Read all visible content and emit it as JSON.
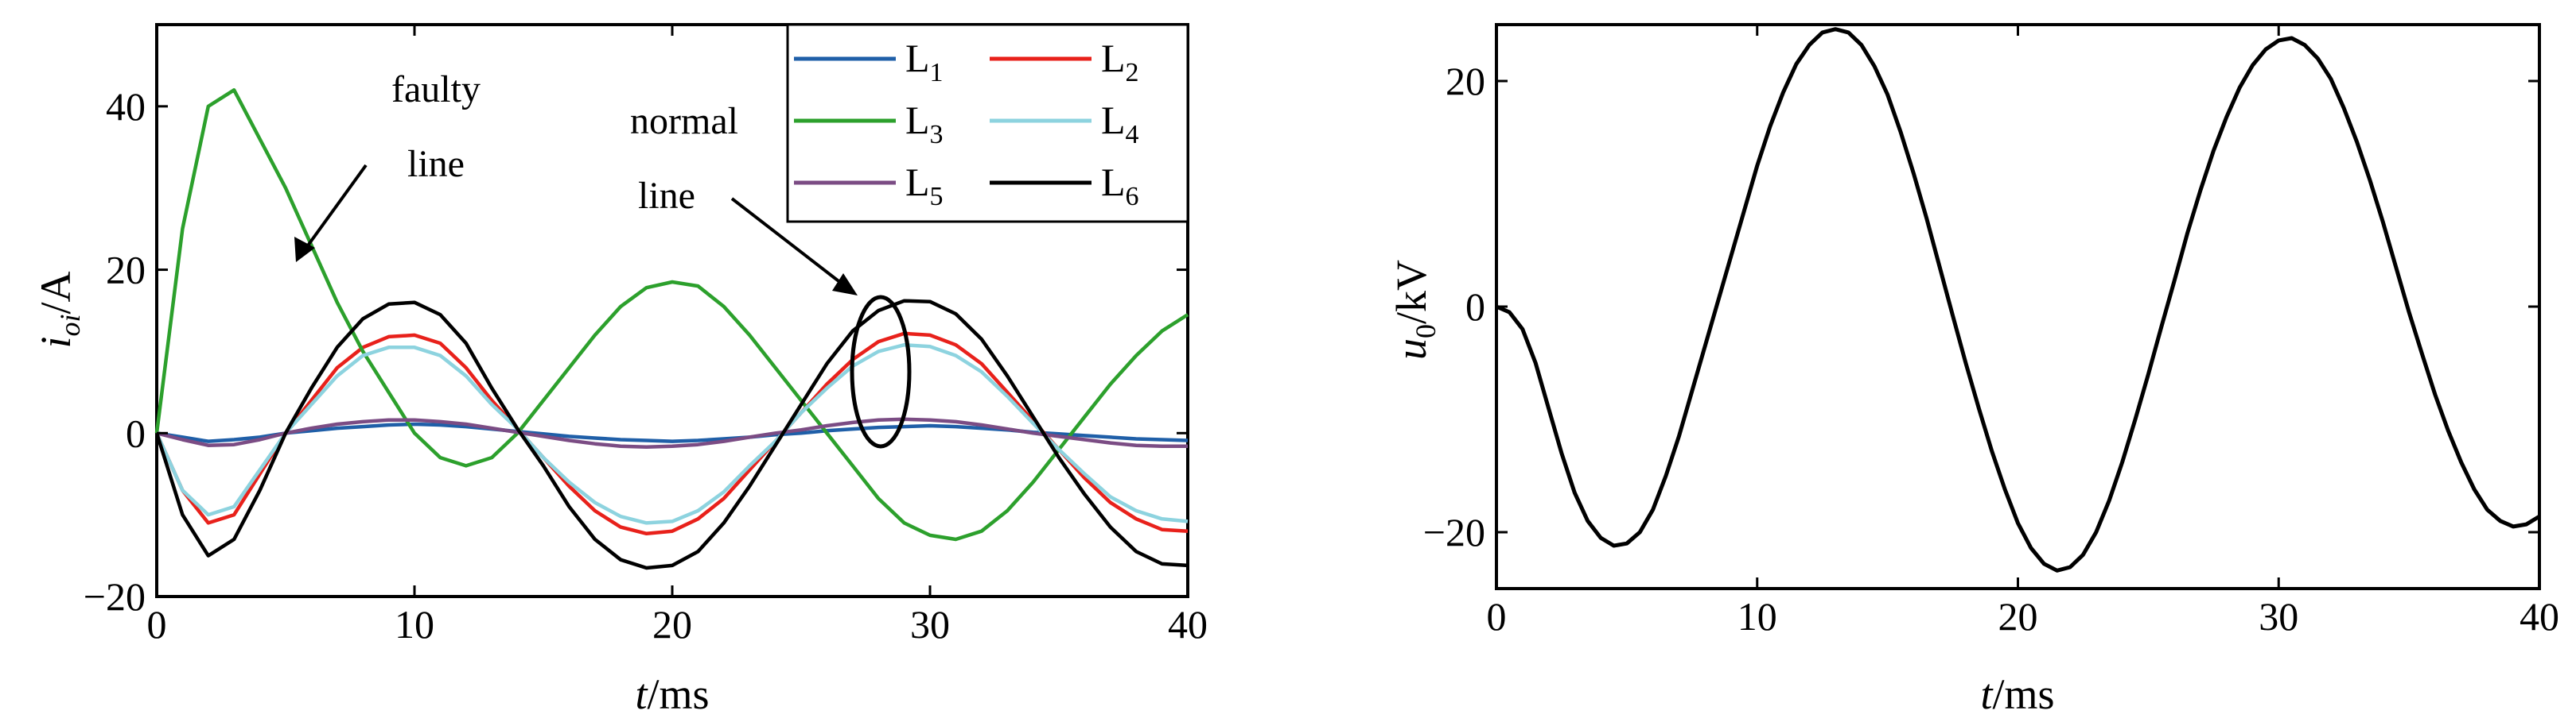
{
  "chart_data": [
    {
      "type": "line",
      "xlabel": {
        "main": "t",
        "unit": "/ms"
      },
      "ylabel": {
        "main": "i",
        "sub": "oi",
        "unit": "/A"
      },
      "xlim": [
        0,
        40
      ],
      "ylim": [
        -20,
        50
      ],
      "xticks": [
        "0",
        "10",
        "20",
        "30",
        "40"
      ],
      "yticks": [
        "−20",
        "0",
        "20",
        "40"
      ],
      "grid": false,
      "legend_position": "top-right",
      "x": [
        0,
        1,
        2,
        3,
        4,
        5,
        6,
        7,
        8,
        9,
        10,
        11,
        12,
        13,
        14,
        15,
        16,
        17,
        18,
        19,
        20,
        21,
        22,
        23,
        24,
        25,
        26,
        27,
        28,
        29,
        30,
        31,
        32,
        33,
        34,
        35,
        36,
        37,
        38,
        39,
        40
      ],
      "series": [
        {
          "name": "L",
          "sub": "1",
          "color": "#1f5fa8",
          "values": [
            0,
            -0.5,
            -1.0,
            -0.8,
            -0.5,
            0,
            0.3,
            0.6,
            0.8,
            1.0,
            1.1,
            1.0,
            0.8,
            0.5,
            0.2,
            -0.1,
            -0.4,
            -0.6,
            -0.8,
            -0.9,
            -1.0,
            -0.9,
            -0.7,
            -0.5,
            -0.2,
            0,
            0.3,
            0.5,
            0.7,
            0.8,
            0.9,
            0.8,
            0.6,
            0.4,
            0.1,
            -0.1,
            -0.3,
            -0.5,
            -0.7,
            -0.8,
            -0.9
          ]
        },
        {
          "name": "L",
          "sub": "2",
          "color": "#e8211b",
          "values": [
            0,
            -7,
            -11,
            -10,
            -5,
            0,
            4,
            8,
            10.5,
            11.8,
            12,
            11,
            8,
            4,
            0.5,
            -3,
            -6.5,
            -9.5,
            -11.5,
            -12.3,
            -12,
            -10.5,
            -8,
            -4.5,
            -1,
            2.5,
            6,
            9,
            11.2,
            12.2,
            12,
            10.8,
            8.5,
            5,
            1.5,
            -2,
            -5.5,
            -8.5,
            -10.5,
            -11.8,
            -12
          ]
        },
        {
          "name": "L",
          "sub": "3",
          "color": "#2ca02c",
          "values": [
            0,
            25,
            40,
            42,
            36,
            30,
            23,
            16,
            10,
            5,
            0,
            -3,
            -4,
            -3,
            0,
            4,
            8,
            12,
            15.5,
            17.8,
            18.5,
            18,
            15.5,
            12,
            8,
            4,
            0,
            -4,
            -8,
            -11,
            -12.5,
            -13,
            -12,
            -9.5,
            -6,
            -2,
            2,
            6,
            9.5,
            12.5,
            14.5
          ]
        },
        {
          "name": "L",
          "sub": "4",
          "color": "#8dd3df",
          "values": [
            0,
            -7,
            -10,
            -9,
            -4.5,
            0,
            3.5,
            7,
            9.5,
            10.5,
            10.5,
            9.5,
            7,
            3.5,
            0.5,
            -3,
            -6,
            -8.5,
            -10.2,
            -11,
            -10.8,
            -9.5,
            -7.2,
            -4,
            -1,
            2.5,
            5.5,
            8.2,
            10,
            10.8,
            10.6,
            9.5,
            7.5,
            4.5,
            1.2,
            -2,
            -5,
            -7.8,
            -9.5,
            -10.5,
            -10.8
          ]
        },
        {
          "name": "L",
          "sub": "5",
          "color": "#7b4c84",
          "values": [
            0,
            -0.8,
            -1.5,
            -1.4,
            -0.8,
            0,
            0.6,
            1.1,
            1.4,
            1.6,
            1.6,
            1.4,
            1.1,
            0.6,
            0.1,
            -0.4,
            -0.9,
            -1.3,
            -1.6,
            -1.7,
            -1.6,
            -1.4,
            -1.0,
            -0.5,
            0,
            0.4,
            0.9,
            1.3,
            1.6,
            1.7,
            1.6,
            1.4,
            1.0,
            0.5,
            0,
            -0.4,
            -0.8,
            -1.2,
            -1.5,
            -1.6,
            -1.6
          ]
        },
        {
          "name": "L",
          "sub": "6",
          "color": "#000000",
          "values": [
            0,
            -10,
            -15,
            -13,
            -7,
            0,
            5.5,
            10.5,
            14,
            15.8,
            16,
            14.5,
            11,
            5.5,
            0.5,
            -4,
            -9,
            -13,
            -15.5,
            -16.5,
            -16.2,
            -14.5,
            -11,
            -6.5,
            -1.5,
            3.5,
            8.5,
            12.5,
            15,
            16.2,
            16.1,
            14.6,
            11.5,
            7,
            2,
            -3,
            -7.5,
            -11.5,
            -14.5,
            -16,
            -16.2
          ]
        }
      ],
      "annotations": [
        {
          "text_lines": [
            "faulty",
            "line"
          ]
        },
        {
          "text_lines": [
            "normal",
            "line"
          ]
        }
      ]
    },
    {
      "type": "line",
      "xlabel": {
        "main": "t",
        "unit": "/ms"
      },
      "ylabel": {
        "main": "u",
        "sub": "0",
        "unit": "/kV"
      },
      "xlim": [
        0,
        40
      ],
      "ylim": [
        -25,
        25
      ],
      "xticks": [
        "0",
        "10",
        "20",
        "30",
        "40"
      ],
      "yticks": [
        "−20",
        "0",
        "20"
      ],
      "grid": false,
      "series": [
        {
          "color": "#000000",
          "x": [
            0,
            0.5,
            1,
            1.5,
            2,
            2.5,
            3,
            3.5,
            4,
            4.5,
            5,
            5.5,
            6,
            6.5,
            7,
            7.5,
            8,
            8.5,
            9,
            9.5,
            10,
            10.5,
            11,
            11.5,
            12,
            12.5,
            13,
            13.5,
            14,
            14.5,
            15,
            15.5,
            16,
            16.5,
            17,
            17.5,
            18,
            18.5,
            19,
            19.5,
            20,
            20.5,
            21,
            21.5,
            22,
            22.5,
            23,
            23.5,
            24,
            24.5,
            25,
            25.5,
            26,
            26.5,
            27,
            27.5,
            28,
            28.5,
            29,
            29.5,
            30,
            30.5,
            31,
            31.5,
            32,
            32.5,
            33,
            33.5,
            34,
            34.5,
            35,
            35.5,
            36,
            36.5,
            37,
            37.5,
            38,
            38.5,
            39,
            39.5,
            40
          ],
          "values": [
            0,
            -0.5,
            -2,
            -5,
            -9,
            -13,
            -16.5,
            -19,
            -20.5,
            -21.2,
            -21,
            -20,
            -18,
            -15,
            -11.5,
            -7.5,
            -3.5,
            0.5,
            4.5,
            8.5,
            12.5,
            16,
            19,
            21.5,
            23.2,
            24.3,
            24.6,
            24.3,
            23.2,
            21.3,
            18.8,
            15.5,
            11.8,
            7.8,
            3.5,
            -0.8,
            -5,
            -9,
            -12.8,
            -16.2,
            -19.2,
            -21.4,
            -22.8,
            -23.4,
            -23.1,
            -22,
            -20,
            -17.2,
            -13.8,
            -10,
            -6,
            -1.8,
            2.3,
            6.5,
            10.3,
            13.8,
            16.8,
            19.4,
            21.4,
            22.8,
            23.6,
            23.8,
            23.2,
            22,
            20.2,
            17.6,
            14.6,
            11.2,
            7.5,
            3.5,
            -0.5,
            -4.2,
            -7.8,
            -11,
            -13.8,
            -16.2,
            -18,
            -19,
            -19.5,
            -19.3,
            -18.6
          ]
        }
      ]
    }
  ]
}
